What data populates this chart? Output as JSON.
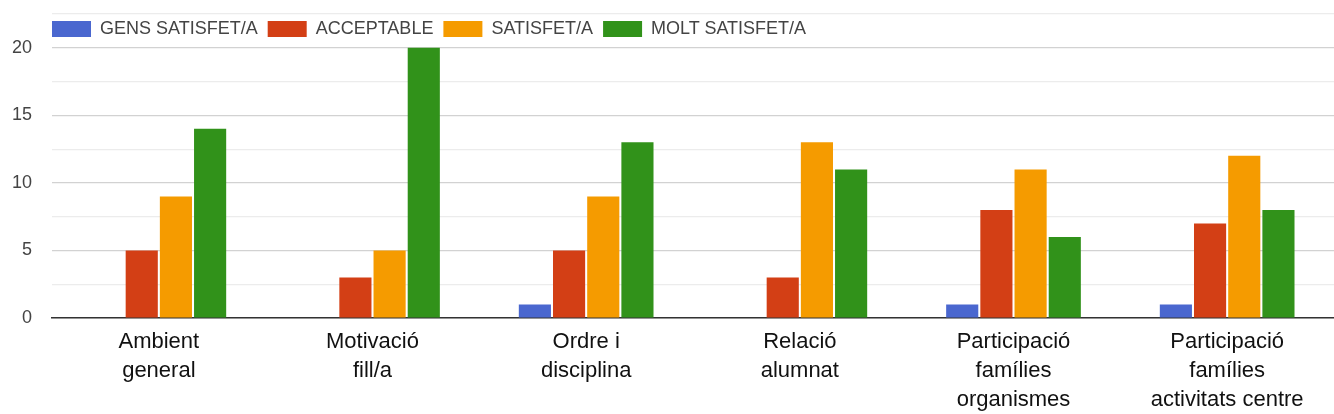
{
  "chart_data": {
    "type": "bar",
    "categories": [
      "Ambient\ngeneral",
      "Motivació\nfill/a",
      "Ordre i\ndisciplina",
      "Relació\nalumnat",
      "Participació\nfamílies\norganismes",
      "Participació\nfamílies\nactivitats centre"
    ],
    "series": [
      {
        "name": "GENS SATISFET/A",
        "color": "#4a67cf",
        "values": [
          0,
          0,
          1,
          0,
          1,
          1
        ]
      },
      {
        "name": "ACCEPTABLE",
        "color": "#d33f15",
        "values": [
          5,
          3,
          5,
          3,
          8,
          7
        ]
      },
      {
        "name": "SATISFET/A",
        "color": "#f59b00",
        "values": [
          9,
          5,
          9,
          13,
          11,
          12
        ]
      },
      {
        "name": "MOLT SATISFET/A",
        "color": "#31921a",
        "values": [
          14,
          20,
          13,
          11,
          6,
          8
        ]
      }
    ],
    "ylim": [
      0,
      22.5
    ],
    "yticks": [
      0,
      {
        "value": 2.5,
        "label": null
      },
      5,
      {
        "value": 7.5,
        "label": null
      },
      10,
      {
        "value": 12.5,
        "label": null
      },
      15,
      {
        "value": 17.5,
        "label": null
      },
      20,
      {
        "value": 22.5,
        "label": null
      }
    ],
    "grid": "y",
    "legend": "top left"
  }
}
